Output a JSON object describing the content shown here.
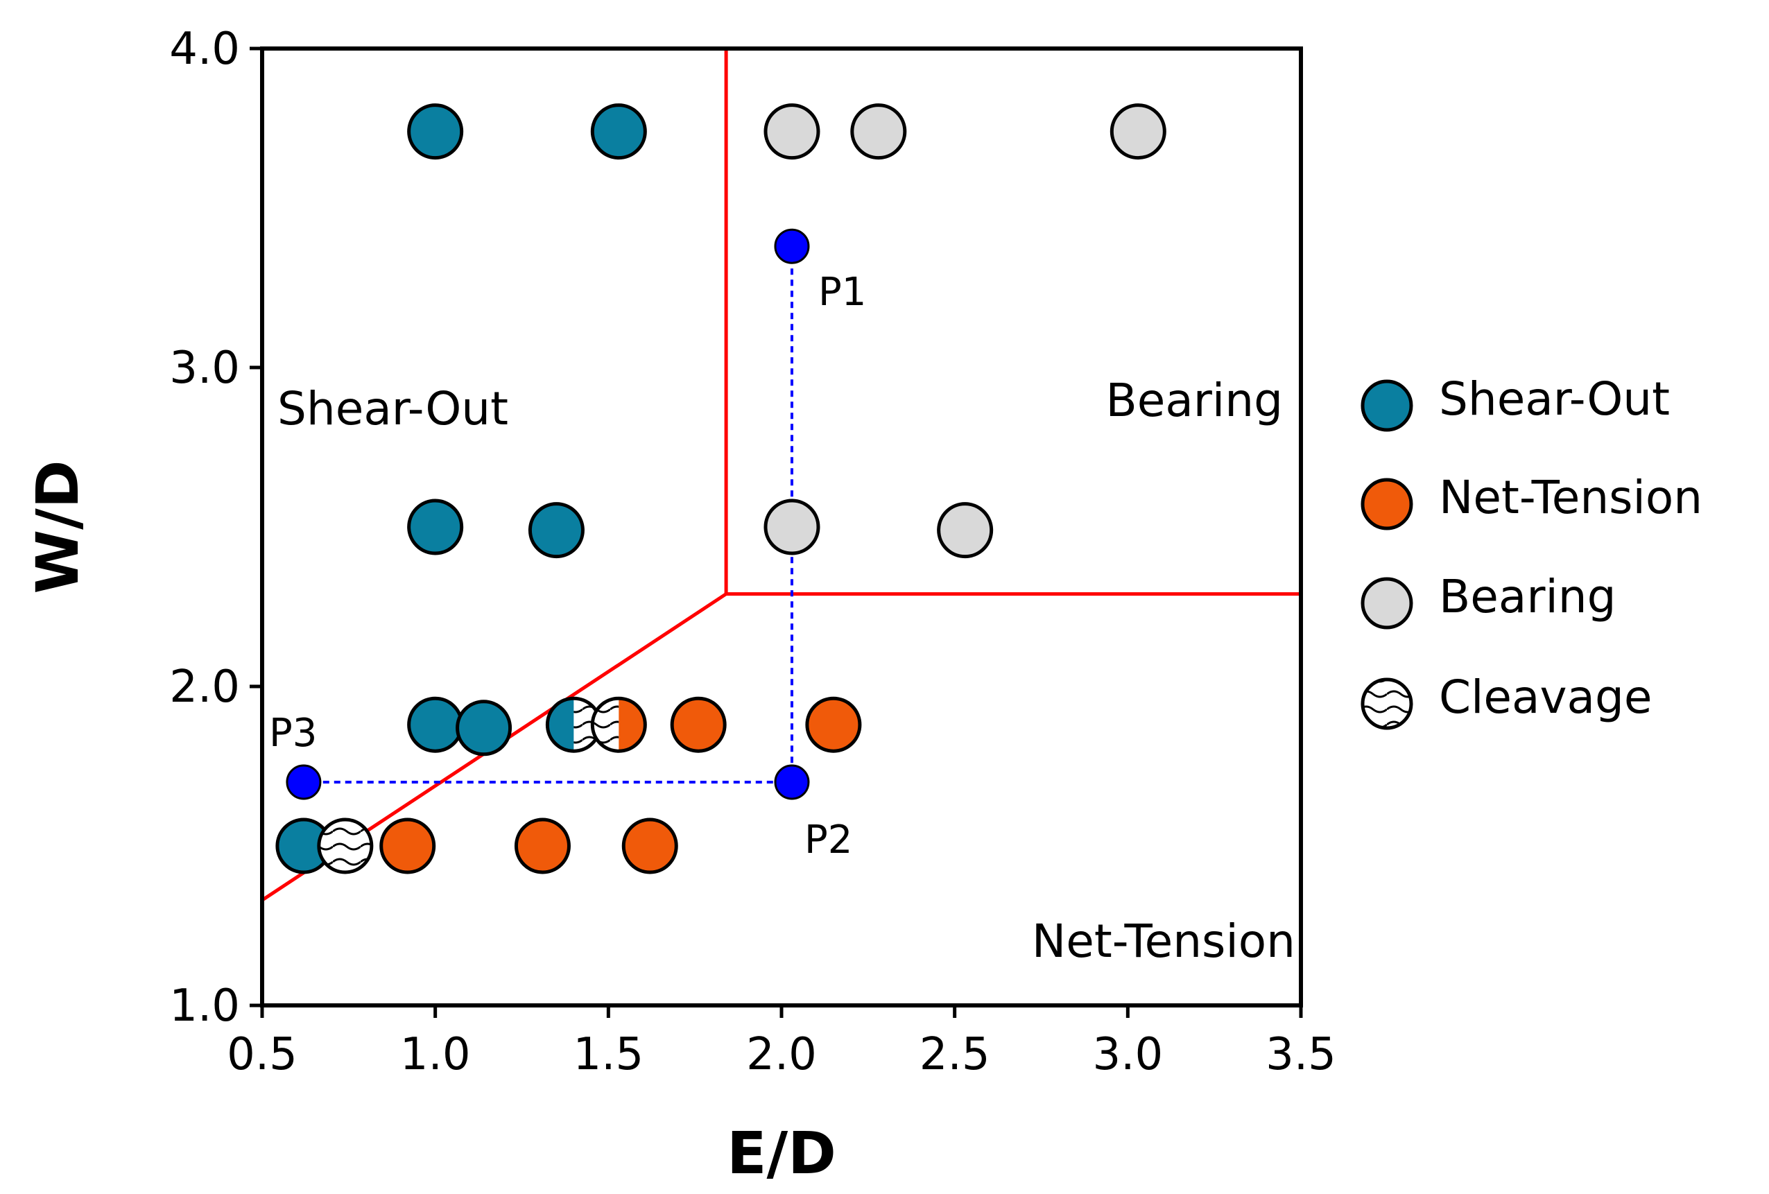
{
  "chart_data": {
    "type": "scatter",
    "xlabel": "E/D",
    "ylabel": "W/D",
    "xlim": [
      0.5,
      3.5
    ],
    "ylim": [
      1.0,
      4.0
    ],
    "xticks": [
      "0.5",
      "1.0",
      "1.5",
      "2.0",
      "2.5",
      "3.0",
      "3.5"
    ],
    "yticks": [
      "1.0",
      "2.0",
      "3.0",
      "4.0"
    ],
    "xtick_values": [
      0.5,
      1.0,
      1.5,
      2.0,
      2.5,
      3.0,
      3.5
    ],
    "ytick_values": [
      1.0,
      2.0,
      3.0,
      4.0
    ],
    "colors": {
      "shear_out": "#0A7FA0",
      "net_tension": "#F05A0A",
      "bearing": "#D9D9D9",
      "cleavage": "#FFFFFF",
      "boundary": "#FF0000",
      "path": "#0000FF"
    },
    "series": [
      {
        "name": "Shear-Out",
        "key": "shear_out",
        "points": [
          [
            1.0,
            3.74
          ],
          [
            1.53,
            3.74
          ],
          [
            1.0,
            2.5
          ],
          [
            1.35,
            2.49
          ],
          [
            1.0,
            1.88
          ],
          [
            1.14,
            1.87
          ],
          [
            0.62,
            1.5
          ]
        ]
      },
      {
        "name": "Net-Tension",
        "key": "net_tension",
        "points": [
          [
            1.76,
            1.88
          ],
          [
            2.15,
            1.88
          ],
          [
            0.92,
            1.5
          ],
          [
            1.31,
            1.5
          ],
          [
            1.62,
            1.5
          ]
        ]
      },
      {
        "name": "Bearing",
        "key": "bearing",
        "points": [
          [
            2.03,
            3.74
          ],
          [
            2.28,
            3.74
          ],
          [
            3.03,
            3.74
          ],
          [
            2.03,
            2.5
          ],
          [
            2.53,
            2.49
          ]
        ]
      },
      {
        "name": "Cleavage",
        "key": "cleavage",
        "points": [
          [
            0.74,
            1.5
          ]
        ]
      }
    ],
    "mixed_points": [
      {
        "x": 1.4,
        "y": 1.88,
        "left": "shear_out",
        "right": "cleavage"
      },
      {
        "x": 1.53,
        "y": 1.88,
        "left": "cleavage",
        "right": "net_tension"
      }
    ],
    "boundaries": [
      [
        [
          0.5,
          1.33
        ],
        [
          1.84,
          2.29
        ],
        [
          3.5,
          2.29
        ]
      ],
      [
        [
          1.84,
          2.29
        ],
        [
          1.84,
          4.0
        ]
      ]
    ],
    "design_points": [
      {
        "label": "P1",
        "x": 2.03,
        "y": 3.38
      },
      {
        "label": "P2",
        "x": 2.03,
        "y": 1.7
      },
      {
        "label": "P3",
        "x": 0.62,
        "y": 1.7
      }
    ],
    "design_path": [
      [
        2.03,
        3.38
      ],
      [
        2.03,
        1.7
      ],
      [
        0.62,
        1.7
      ]
    ],
    "region_labels": {
      "shear_out": "Shear-Out",
      "bearing": "Bearing",
      "net_tension": "Net-Tension"
    },
    "legend": {
      "position": "right",
      "entries": [
        {
          "label": "Shear-Out",
          "key": "shear_out"
        },
        {
          "label": "Net-Tension",
          "key": "net_tension"
        },
        {
          "label": "Bearing",
          "key": "bearing"
        },
        {
          "label": "Cleavage",
          "key": "cleavage"
        }
      ]
    }
  }
}
